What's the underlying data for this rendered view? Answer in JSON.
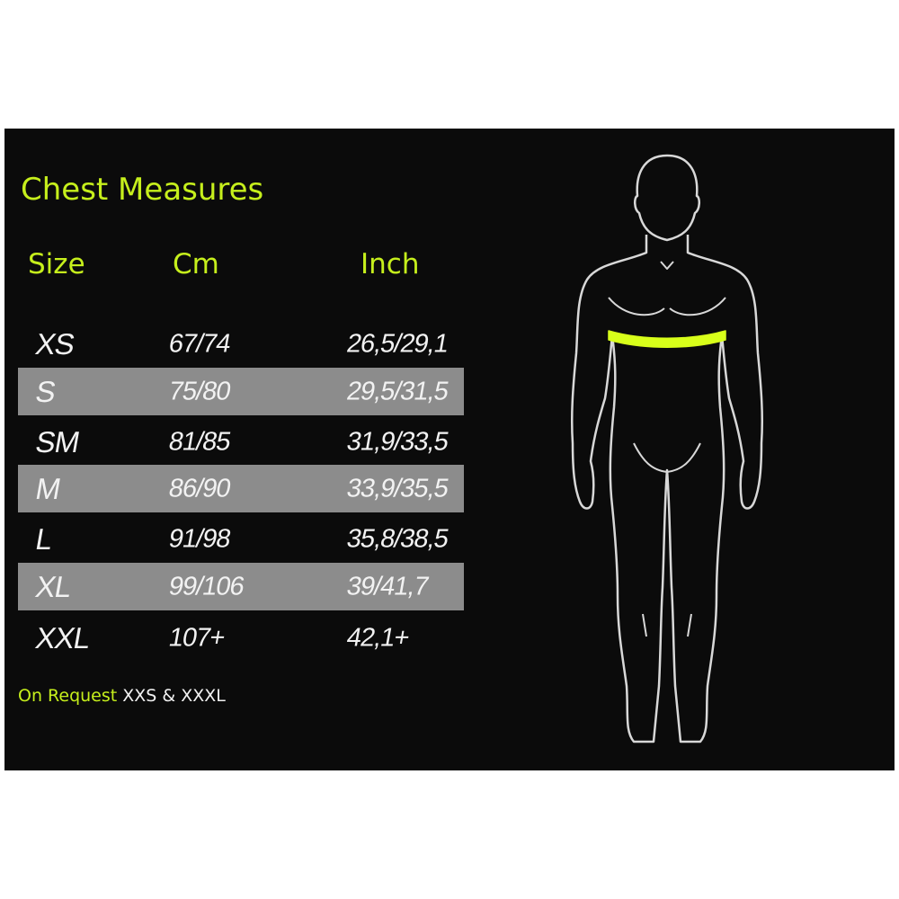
{
  "title": "Chest Measures",
  "headers": {
    "size": "Size",
    "cm": "Cm",
    "inch": "Inch"
  },
  "rows": [
    {
      "size": "XS",
      "cm": "67/74",
      "inch": "26,5/29,1",
      "shaded": false
    },
    {
      "size": "S",
      "cm": "75/80",
      "inch": "29,5/31,5",
      "shaded": true
    },
    {
      "size": "SM",
      "cm": "81/85",
      "inch": "31,9/33,5",
      "shaded": false
    },
    {
      "size": "M",
      "cm": "86/90",
      "inch": "33,9/35,5",
      "shaded": true
    },
    {
      "size": "L",
      "cm": "91/98",
      "inch": "35,8/38,5",
      "shaded": false
    },
    {
      "size": "XL",
      "cm": "99/106",
      "inch": "39/41,7",
      "shaded": true
    },
    {
      "size": "XXL",
      "cm": "107+",
      "inch": "42,1+",
      "shaded": false
    }
  ],
  "note": {
    "highlight": "On Request",
    "text": " XXS & XXXL"
  },
  "colors": {
    "accent": "#c6ef1c",
    "background": "#0b0b0b",
    "row_shade": "#8c8c8c"
  },
  "illustration": "human-body-outline with chest band highlighted"
}
